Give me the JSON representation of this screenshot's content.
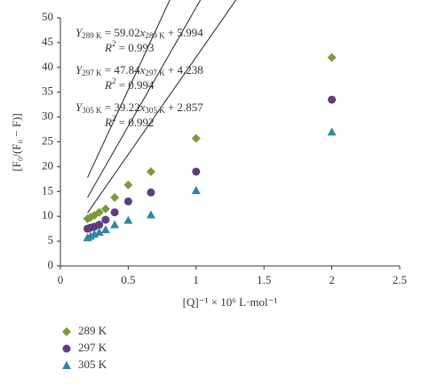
{
  "chart_data": {
    "type": "scatter",
    "x_label": "[Q]⁻¹ × 10⁶ L·mol⁻¹",
    "y_label": "[F₀/(F₀ − F)]",
    "x": [
      0.2,
      0.222,
      0.25,
      0.286,
      0.333,
      0.4,
      0.5,
      0.667,
      1.0,
      2.0
    ],
    "series": [
      {
        "name": "289 K",
        "color": "#7a9a3a",
        "marker": "diamond",
        "values": [
          9.5,
          9.8,
          10.2,
          10.8,
          11.5,
          13.8,
          16.3,
          19.0,
          25.7,
          42.0
        ]
      },
      {
        "name": "297 K",
        "color": "#5b3f7a",
        "marker": "circle",
        "values": [
          7.5,
          7.7,
          7.9,
          8.3,
          9.3,
          10.8,
          13.0,
          14.8,
          19.0,
          33.5
        ]
      },
      {
        "name": "305 K",
        "color": "#2e86a8",
        "marker": "triangle",
        "values": [
          5.7,
          6.0,
          6.4,
          6.8,
          7.3,
          8.3,
          9.2,
          10.3,
          15.2,
          27.0
        ]
      }
    ],
    "fits": [
      {
        "sub": "289 K",
        "slope": 59.02,
        "intercept": 5.994,
        "r2": 0.993
      },
      {
        "sub": "297 K",
        "slope": 47.84,
        "intercept": 4.238,
        "r2": 0.994
      },
      {
        "sub": "305 K",
        "slope": 39.22,
        "intercept": 2.857,
        "r2": 0.992
      }
    ],
    "symbols": {
      "y": "Y",
      "x": "x",
      "equals": " = ",
      "plus": " + ",
      "r": "R",
      "sq": "2"
    },
    "xlim": [
      0,
      2.5
    ],
    "ylim": [
      0,
      50
    ],
    "xticks": [
      0,
      0.5,
      1,
      1.5,
      2,
      2.5
    ],
    "yticks": [
      0,
      5,
      10,
      15,
      20,
      25,
      30,
      35,
      40,
      45,
      50
    ],
    "grid": false,
    "legend": "bottom-left"
  }
}
